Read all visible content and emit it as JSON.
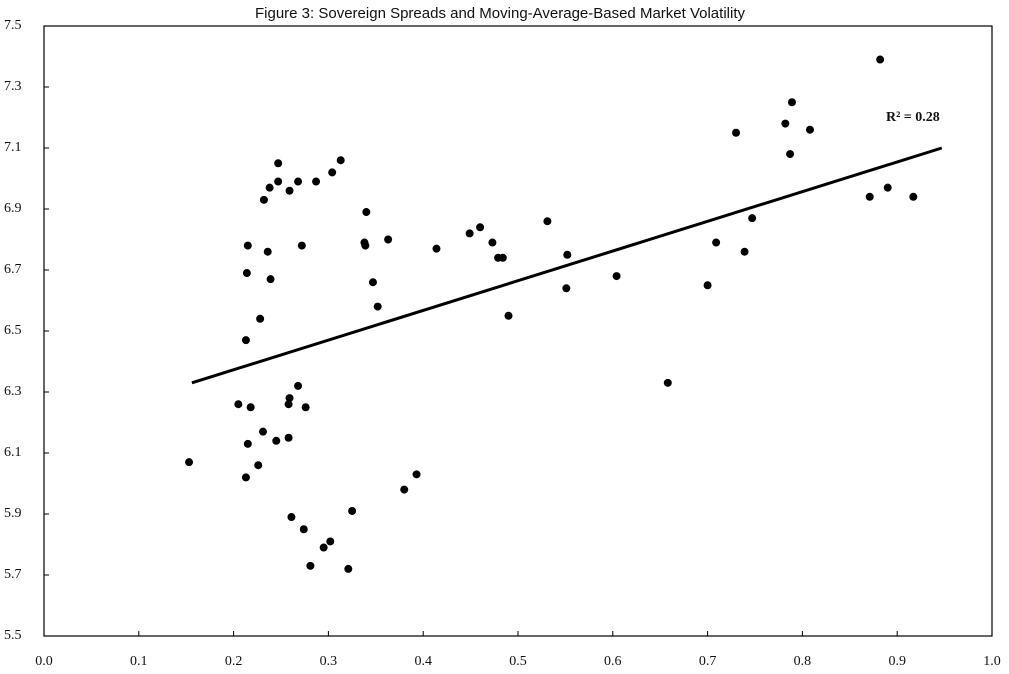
{
  "chart_data": {
    "type": "scatter",
    "title": "Figure 3: Sovereign Spreads and Moving-Average-Based  Market Volatility",
    "x": [
      0.153,
      0.205,
      0.218,
      0.213,
      0.215,
      0.213,
      0.215,
      0.214,
      0.228,
      0.231,
      0.226,
      0.232,
      0.238,
      0.236,
      0.239,
      0.245,
      0.247,
      0.247,
      0.259,
      0.268,
      0.259,
      0.258,
      0.258,
      0.268,
      0.272,
      0.276,
      0.261,
      0.274,
      0.281,
      0.287,
      0.304,
      0.313,
      0.295,
      0.302,
      0.321,
      0.325,
      0.34,
      0.338,
      0.339,
      0.347,
      0.352,
      0.363,
      0.38,
      0.393,
      0.414,
      0.449,
      0.46,
      0.473,
      0.479,
      0.484,
      0.49,
      0.531,
      0.551,
      0.552,
      0.604,
      0.658,
      0.7,
      0.709,
      0.73,
      0.739,
      0.747,
      0.782,
      0.787,
      0.789,
      0.808,
      0.871,
      0.882,
      0.89,
      0.917
    ],
    "y": [
      6.07,
      6.26,
      6.25,
      6.47,
      6.13,
      6.02,
      6.78,
      6.69,
      6.54,
      6.17,
      6.06,
      6.93,
      6.97,
      6.76,
      6.67,
      6.14,
      6.99,
      7.05,
      6.96,
      6.99,
      6.28,
      6.26,
      6.15,
      6.32,
      6.78,
      6.25,
      5.89,
      5.85,
      5.73,
      6.99,
      7.02,
      7.06,
      5.79,
      5.81,
      5.72,
      5.91,
      6.89,
      6.79,
      6.78,
      6.66,
      6.58,
      6.8,
      5.98,
      6.03,
      6.77,
      6.82,
      6.84,
      6.79,
      6.74,
      6.74,
      6.55,
      6.86,
      6.64,
      6.75,
      6.68,
      6.33,
      6.65,
      6.79,
      7.15,
      6.76,
      6.87,
      7.18,
      7.08,
      7.25,
      7.16,
      6.94,
      7.39,
      6.97,
      6.94
    ],
    "color": "#000000",
    "trendline": {
      "x": [
        0.156,
        0.947
      ],
      "y": [
        6.33,
        7.1
      ]
    },
    "annotation": "R² = 0.28",
    "xlim": [
      0,
      1
    ],
    "ylim": [
      5.5,
      7.5
    ],
    "xticks": [
      {
        "value": 0,
        "label": "0.0"
      },
      0.1,
      0.2,
      0.3,
      0.4,
      0.5,
      0.6,
      0.7,
      0.8,
      0.9,
      {
        "value": 1,
        "label": "1.0"
      }
    ],
    "yticks": [
      5.5,
      5.7,
      5.9,
      6.1,
      6.3,
      6.5,
      6.7,
      6.9,
      7.1,
      7.3,
      7.5
    ],
    "grid": false
  }
}
